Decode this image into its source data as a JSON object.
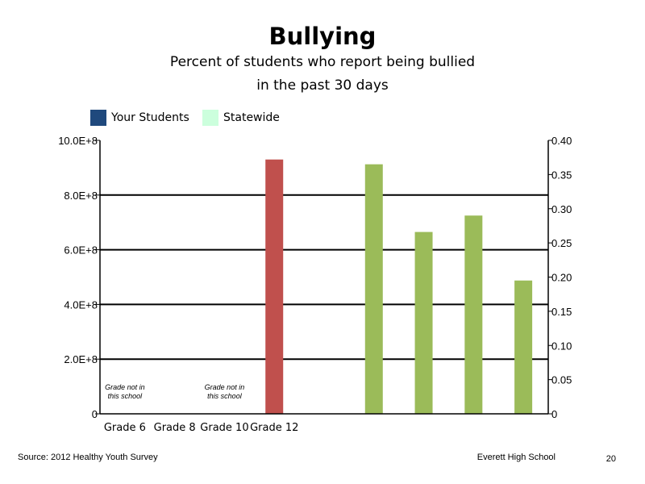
{
  "chart_data": {
    "type": "bar",
    "title": "Bullying",
    "subtitle_lines": [
      "Percent of students who report being bullied",
      "in the past 30 days"
    ],
    "legend": [
      {
        "name": "Your Students",
        "color": "#1f497d"
      },
      {
        "name": "Statewide",
        "color": "#ccffdd"
      }
    ],
    "categories": [
      "Grade 6",
      "Grade 8",
      "Grade 10",
      "Grade 12"
    ],
    "grade_notes": [
      {
        "category": "Grade 6",
        "lines": [
          "Grade not in",
          "this school"
        ]
      },
      {
        "category": "Grade 10",
        "lines": [
          "Grade not in",
          "this school"
        ]
      }
    ],
    "left_axis": {
      "ylim": [
        0,
        1000000000
      ],
      "ticks": [
        {
          "value": 0,
          "label": "0"
        },
        {
          "value": 200000000,
          "label": "2.0E+8"
        },
        {
          "value": 400000000,
          "label": "4.0E+8"
        },
        {
          "value": 600000000,
          "label": "6.0E+8"
        },
        {
          "value": 800000000,
          "label": "8.0E+8"
        },
        {
          "value": 1000000000,
          "label": "10.0E+8"
        }
      ],
      "gridlines": true
    },
    "right_axis": {
      "ylim": [
        0,
        0.4
      ],
      "ticks": [
        "0",
        "0.05",
        "0.10",
        "0.15",
        "0.20",
        "0.25",
        "0.30",
        "0.35",
        "0.40"
      ]
    },
    "bars": [
      {
        "slot": 3,
        "axis": "left",
        "value": 930000000,
        "color": "#c0504d"
      },
      {
        "slot": 5,
        "axis": "right",
        "value": 0.365,
        "color": "#9bbb59"
      },
      {
        "slot": 6,
        "axis": "right",
        "value": 0.266,
        "color": "#9bbb59"
      },
      {
        "slot": 7,
        "axis": "right",
        "value": 0.29,
        "color": "#9bbb59"
      },
      {
        "slot": 8,
        "axis": "right",
        "value": 0.195,
        "color": "#9bbb59"
      }
    ]
  },
  "footer": {
    "source": "Source: 2012 Healthy Youth Survey",
    "school": "Everett High School",
    "page_number": "20"
  }
}
